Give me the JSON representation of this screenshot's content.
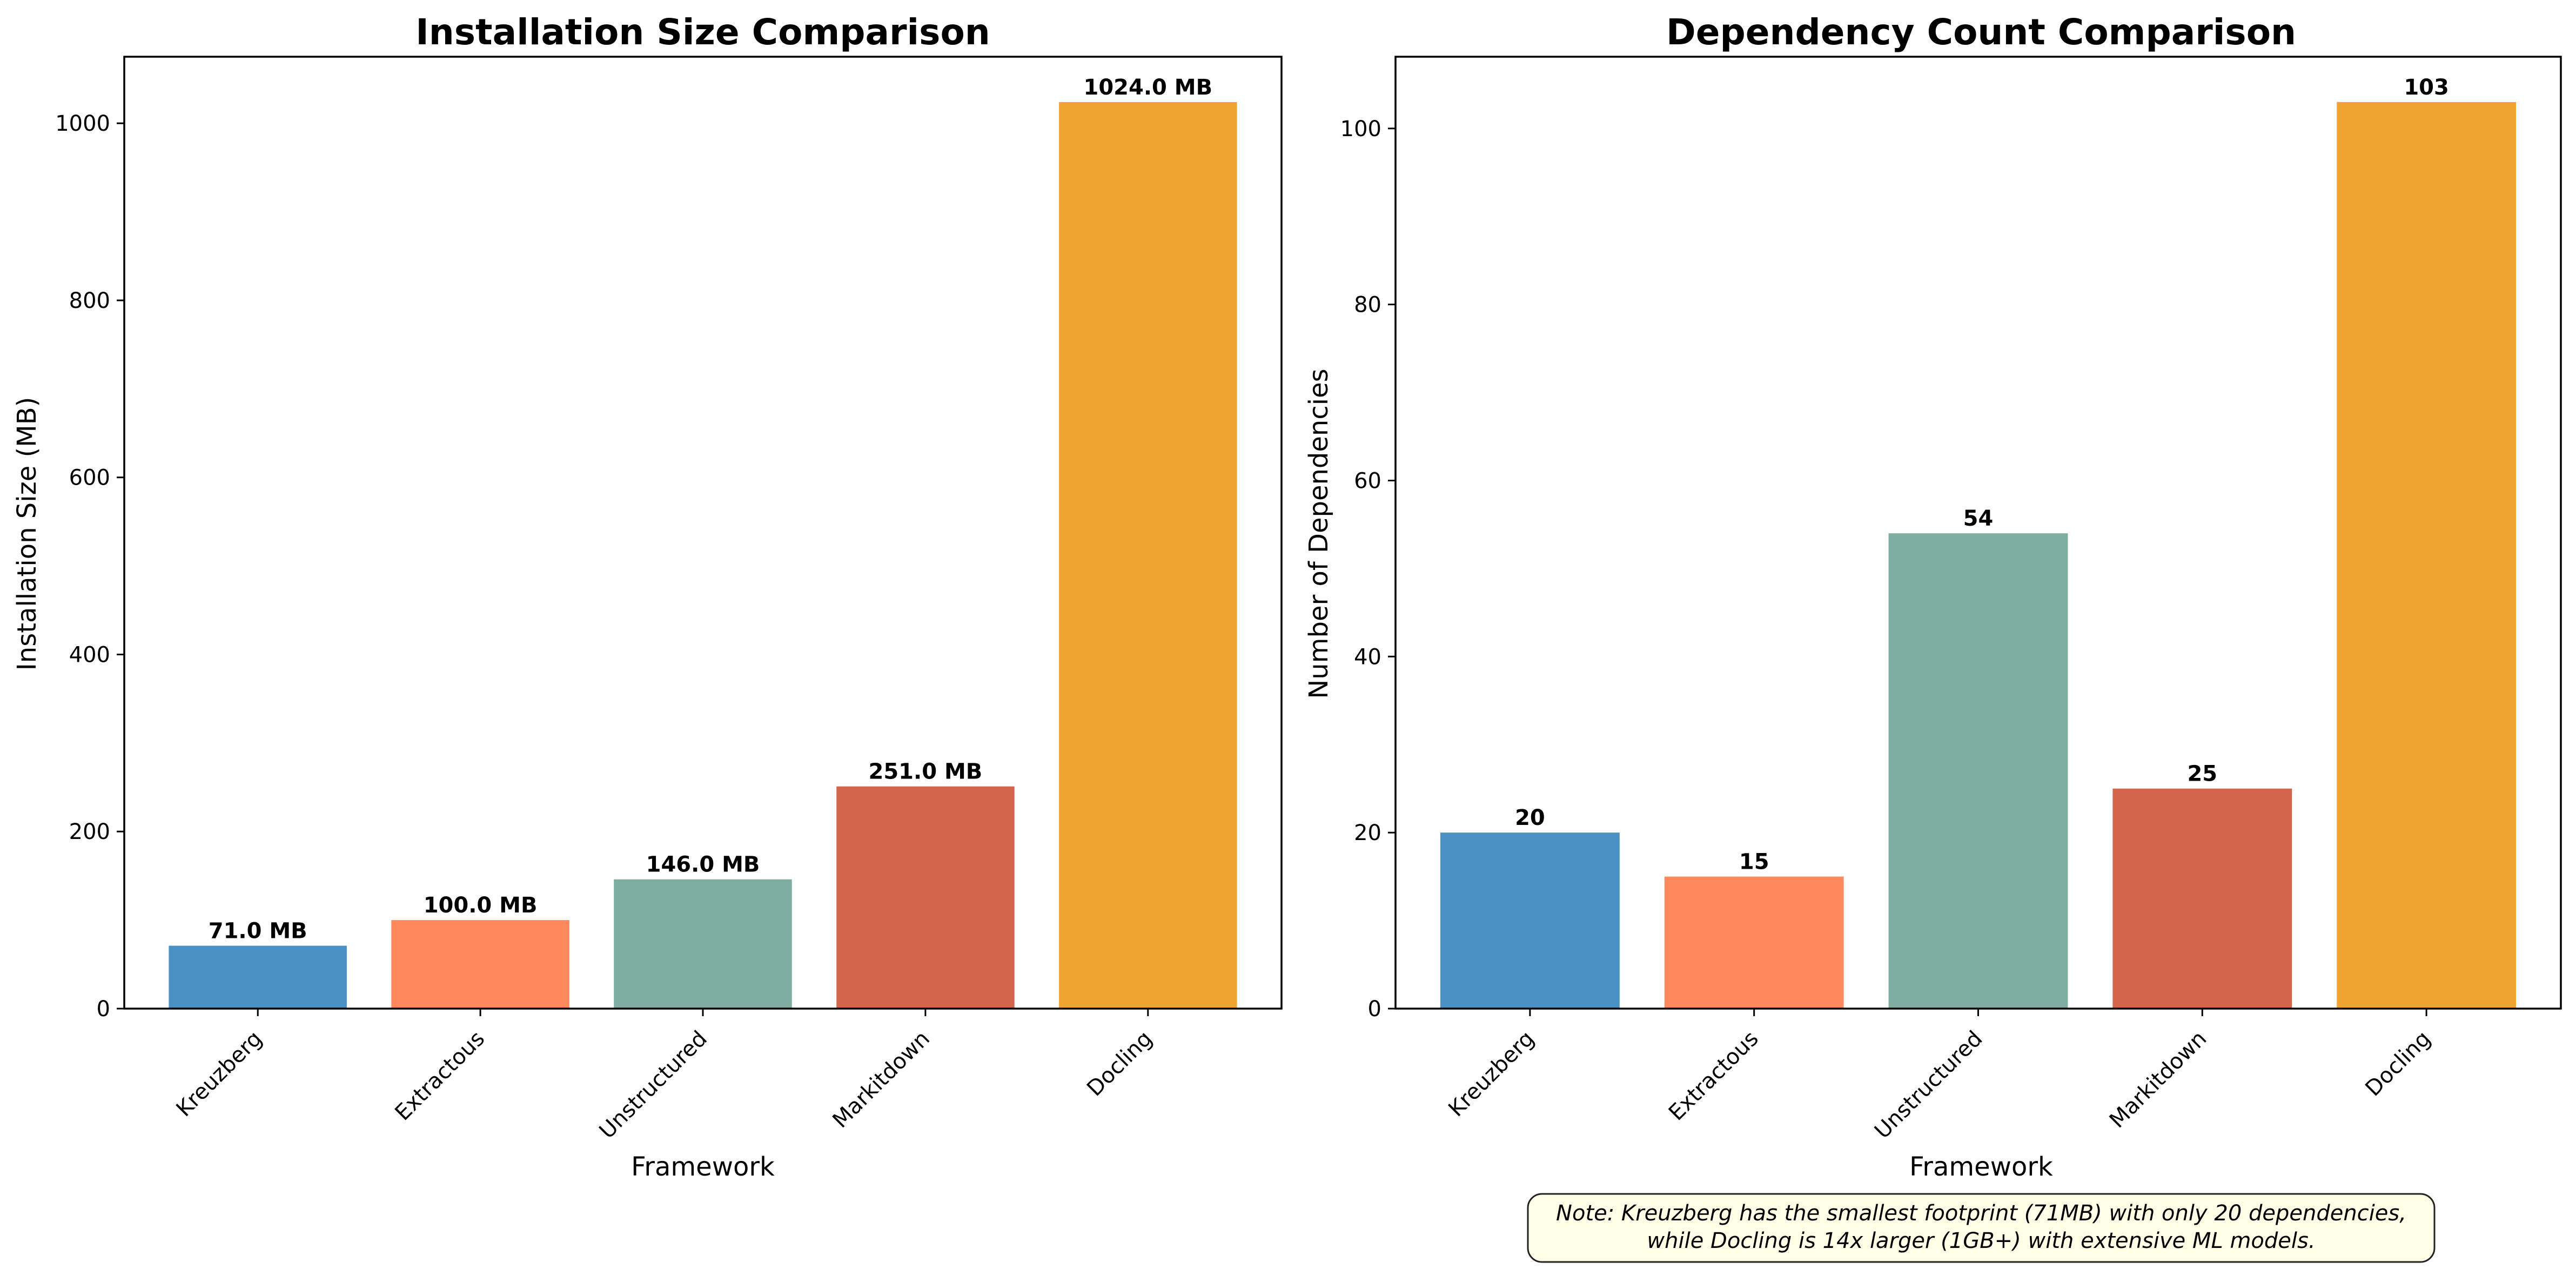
{
  "chart_data": [
    {
      "type": "bar",
      "title": "Installation Size Comparison",
      "xlabel": "Framework",
      "ylabel": "Installation Size (MB)",
      "categories": [
        "Kreuzberg",
        "Extractous",
        "Unstructured",
        "Markitdown",
        "Docling"
      ],
      "values": [
        71.0,
        100.0,
        146.0,
        251.0,
        1024.0
      ],
      "data_labels": [
        "71.0 MB",
        "100.0 MB",
        "146.0 MB",
        "251.0 MB",
        "1024.0 MB"
      ],
      "colors": [
        "#4a90c4",
        "#ff885c",
        "#7daea0",
        "#d3654c",
        "#f0a432"
      ],
      "yticks": [
        0,
        200,
        400,
        600,
        800,
        1000
      ],
      "ylim": [
        0,
        1075.2
      ],
      "grid": false,
      "legend": "none"
    },
    {
      "type": "bar",
      "title": "Dependency Count Comparison",
      "xlabel": "Framework",
      "ylabel": "Number of Dependencies",
      "categories": [
        "Kreuzberg",
        "Extractous",
        "Unstructured",
        "Markitdown",
        "Docling"
      ],
      "values": [
        20,
        15,
        54,
        25,
        103
      ],
      "data_labels": [
        "20",
        "15",
        "54",
        "25",
        "103"
      ],
      "colors": [
        "#4a90c4",
        "#ff885c",
        "#7daea0",
        "#d3654c",
        "#f0a432"
      ],
      "yticks": [
        0,
        20,
        40,
        60,
        80,
        100
      ],
      "ylim": [
        0,
        108.15
      ],
      "grid": false,
      "legend": "none"
    }
  ],
  "note": {
    "line1": "Note: Kreuzberg has the smallest footprint (71MB) with only 20 dependencies,",
    "line2": "while Docling is 14x larger (1GB+) with extensive ML models."
  }
}
